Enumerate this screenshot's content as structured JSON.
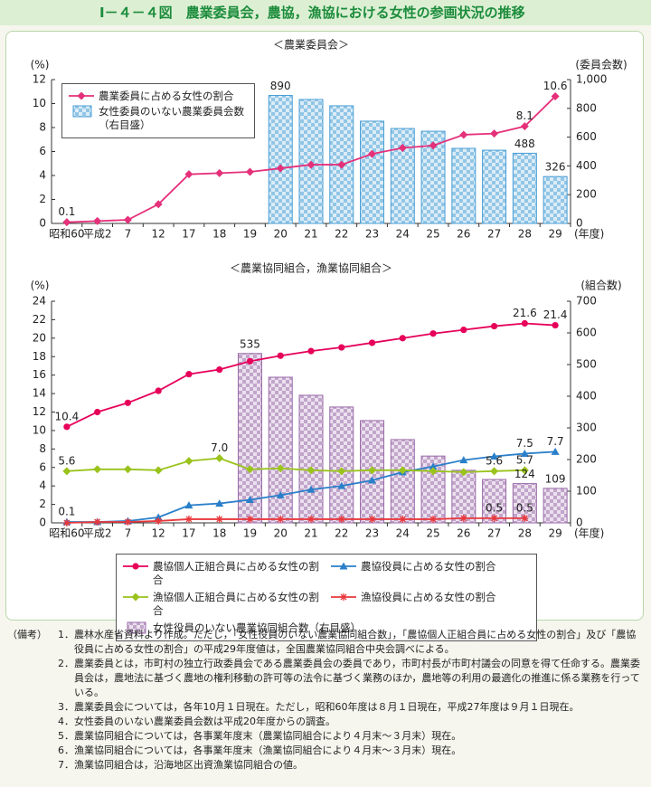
{
  "header": {
    "title": "Ⅰ－４－４図　農業委員会，農協，漁協における女性の参画状況の推移"
  },
  "chart_data": [
    {
      "type": "combo",
      "title": "＜農業委員会＞",
      "y_label": "(%)",
      "y2_label": "(委員会数)",
      "x_label": "(年度)",
      "categories": [
        "昭和60",
        "平成2",
        "7",
        "12",
        "17",
        "18",
        "19",
        "20",
        "21",
        "22",
        "23",
        "24",
        "25",
        "26",
        "27",
        "28",
        "29"
      ],
      "ylim": [
        0,
        12
      ],
      "yticks": [
        0,
        2,
        4,
        6,
        8,
        10,
        12
      ],
      "y2lim": [
        0,
        1000
      ],
      "y2ticks": [
        0,
        200,
        400,
        600,
        800,
        {
          "value": 1000,
          "label": "1,000"
        }
      ],
      "grid": false,
      "series": [
        {
          "name": "農業委員に占める女性の割合",
          "type": "line",
          "marker": "diamond",
          "color": "#e5307a",
          "axis": "y",
          "values": [
            0.1,
            0.2,
            0.3,
            1.6,
            4.1,
            4.2,
            4.3,
            4.6,
            4.9,
            4.9,
            5.8,
            6.3,
            6.5,
            7.4,
            7.5,
            8.1,
            10.6
          ],
          "value_labels": [
            "0.1",
            null,
            null,
            null,
            null,
            null,
            null,
            null,
            null,
            null,
            null,
            null,
            null,
            null,
            null,
            "8.1",
            "10.6"
          ]
        },
        {
          "name": "女性委員のいない農業委員会数（右目盛）",
          "type": "bar",
          "color": "#4a9fd6",
          "axis": "y2",
          "values": [
            null,
            null,
            null,
            null,
            null,
            null,
            null,
            890,
            862,
            818,
            711,
            660,
            641,
            522,
            509,
            488,
            326
          ],
          "value_labels": [
            null,
            null,
            null,
            null,
            null,
            null,
            null,
            "890",
            null,
            null,
            null,
            null,
            null,
            null,
            null,
            "488",
            "326"
          ]
        }
      ]
    },
    {
      "type": "combo",
      "title": "＜農業協同組合，漁業協同組合＞",
      "y_label": "(%)",
      "y2_label": "(組合数)",
      "x_label": "(年度)",
      "categories": [
        "昭和60",
        "平成2",
        "7",
        "12",
        "17",
        "18",
        "19",
        "20",
        "21",
        "22",
        "23",
        "24",
        "25",
        "26",
        "27",
        "28",
        "29"
      ],
      "ylim": [
        0,
        24
      ],
      "yticks": [
        0,
        2,
        4,
        6,
        8,
        10,
        12,
        14,
        16,
        18,
        20,
        22,
        24
      ],
      "y2lim": [
        0,
        700
      ],
      "y2ticks": [
        0,
        100,
        200,
        300,
        400,
        500,
        600,
        700
      ],
      "grid": false,
      "series": [
        {
          "name": "農協個人正組合員に占める女性の割合",
          "type": "line",
          "marker": "circle",
          "color": "#e6005a",
          "axis": "y",
          "values": [
            10.4,
            12.0,
            13.0,
            14.3,
            16.1,
            16.6,
            17.5,
            18.1,
            18.6,
            19.0,
            19.5,
            20.0,
            20.5,
            20.9,
            21.3,
            21.6,
            21.4
          ],
          "value_labels": [
            "10.4",
            null,
            null,
            null,
            null,
            null,
            null,
            null,
            null,
            null,
            null,
            null,
            null,
            null,
            null,
            "21.6",
            "21.4"
          ]
        },
        {
          "name": "農協役員に占める女性の割合",
          "type": "line",
          "marker": "triangle",
          "color": "#2a7fc9",
          "axis": "y",
          "values": [
            0.1,
            0.1,
            0.2,
            0.6,
            1.9,
            2.1,
            2.5,
            3.0,
            3.6,
            4.0,
            4.6,
            5.5,
            6.1,
            6.8,
            7.2,
            7.5,
            7.7
          ],
          "value_labels": [
            "0.1",
            null,
            null,
            null,
            null,
            null,
            null,
            null,
            null,
            null,
            null,
            null,
            null,
            null,
            null,
            "7.5",
            "7.7"
          ]
        },
        {
          "name": "漁協個人正組合員に占める女性の割合",
          "type": "line",
          "marker": "diamond",
          "color": "#9ac31c",
          "axis": "y",
          "values": [
            5.6,
            5.8,
            5.8,
            5.7,
            6.7,
            7.0,
            5.8,
            5.9,
            5.7,
            5.6,
            5.7,
            5.7,
            5.6,
            5.5,
            5.6,
            5.7,
            null
          ],
          "value_labels": [
            "5.6",
            null,
            null,
            null,
            null,
            "7.0",
            null,
            null,
            null,
            null,
            null,
            null,
            null,
            null,
            "5.6",
            "5.7",
            null
          ]
        },
        {
          "name": "漁協役員に占める女性の割合",
          "type": "line",
          "marker": "asterisk",
          "color": "#e8383d",
          "axis": "y",
          "values": [
            0.0,
            0.1,
            0.1,
            0.2,
            0.4,
            0.4,
            0.4,
            0.4,
            0.4,
            0.4,
            0.4,
            0.4,
            0.4,
            0.5,
            0.5,
            0.5,
            null
          ],
          "value_labels": [
            null,
            null,
            null,
            null,
            null,
            null,
            null,
            null,
            null,
            null,
            null,
            null,
            null,
            null,
            "0.5",
            "0.5",
            null
          ]
        },
        {
          "name": "女性役員のいない農業協同組合数（右目盛）",
          "type": "bar",
          "color": "#9a6aa8",
          "axis": "y2",
          "values": [
            null,
            null,
            null,
            null,
            null,
            null,
            535,
            460,
            403,
            366,
            323,
            263,
            211,
            166,
            137,
            124,
            109
          ],
          "value_labels": [
            null,
            null,
            null,
            null,
            null,
            null,
            "535",
            null,
            null,
            null,
            null,
            null,
            null,
            null,
            null,
            "124",
            "109"
          ]
        }
      ]
    }
  ],
  "notes": {
    "heading": "（備考）",
    "items": [
      {
        "number": "1．",
        "text": "農林水産省資料より作成。ただし，「女性役員のいない農業協同組合数」，「農協個人正組合員に占める女性の割合」及び「農協役員に占める女性の割合」の平成29年度値は，全国農業協同組合中央会調べによる。"
      },
      {
        "number": "2．",
        "text": "農業委員とは，市町村の独立行政委員会である農業委員会の委員であり，市町村長が市町村議会の同意を得て任命する。農業委員会は，農地法に基づく農地の権利移動の許可等の法令に基づく業務のほか，農地等の利用の最適化の推進に係る業務を行っている。"
      },
      {
        "number": "3．",
        "text": "農業委員会については，各年10月１日現在。ただし，昭和60年度は８月１日現在，平成27年度は９月１日現在。"
      },
      {
        "number": "4．",
        "text": "女性委員のいない農業委員会数は平成20年度からの調査。"
      },
      {
        "number": "5．",
        "text": "農業協同組合については，各事業年度末（農業協同組合により４月末～３月末）現在。"
      },
      {
        "number": "6．",
        "text": "漁業協同組合については，各事業年度末（漁業協同組合により４月末～３月末）現在。"
      },
      {
        "number": "7．",
        "text": "漁業協同組合は，沿海地区出資漁業協同組合の値。"
      }
    ]
  }
}
